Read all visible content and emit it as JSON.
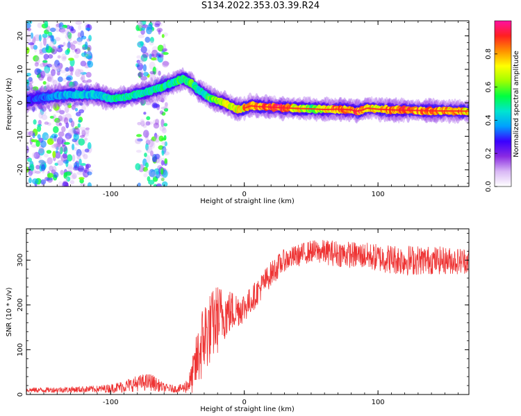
{
  "figure": {
    "title": "S134.2022.353.03.39.R24"
  },
  "chart_data": [
    {
      "type": "heatmap",
      "xlabel": "Height of straight line (km)",
      "ylabel": "Frequency (Hz)",
      "xlim": [
        -163,
        168
      ],
      "ylim": [
        -25,
        24.5
      ],
      "x_ticks": [
        -100,
        0,
        100
      ],
      "x_tick_labels": [
        "-100",
        "0",
        "100"
      ],
      "y_ticks": [
        -20,
        -10,
        0,
        10,
        20
      ],
      "y_tick_labels": [
        "-20",
        "-10",
        "0",
        "10",
        "20"
      ],
      "colorbar": {
        "label": "Normalized spectral amplitude",
        "range": [
          0,
          1
        ],
        "ticks": [
          0,
          0.2,
          0.4,
          0.6,
          0.8
        ],
        "tick_labels": [
          "0.0",
          "0.2",
          "0.4",
          "0.6",
          "0.8"
        ],
        "colormap": [
          "#ffffff",
          "#d9b8f5",
          "#8a2be2",
          "#3a00ff",
          "#00a0ff",
          "#00e5d0",
          "#00ff40",
          "#a0ff00",
          "#ffff00",
          "#ff9000",
          "#ff2020",
          "#ff10a0"
        ]
      },
      "ridge": {
        "x": [
          -163,
          -150,
          -130,
          -110,
          -100,
          -90,
          -80,
          -70,
          -60,
          -52,
          -46,
          -40,
          -35,
          -30,
          -25,
          -20,
          -15,
          -10,
          -5,
          0,
          5,
          10,
          20,
          30,
          40,
          50,
          60,
          70,
          80,
          84,
          88,
          92,
          100,
          110,
          120,
          140,
          168
        ],
        "freq": [
          0.8,
          1.6,
          2.5,
          2.4,
          1.2,
          1.6,
          2.6,
          3.6,
          4.9,
          6.2,
          7.3,
          6.0,
          4.0,
          2.6,
          1.3,
          0.5,
          0.0,
          -1.0,
          -2.0,
          -1.6,
          -0.9,
          -1.1,
          -1.3,
          -1.5,
          -1.7,
          -1.8,
          -2.0,
          -1.9,
          -2.1,
          -2.5,
          -2.2,
          -1.6,
          -1.9,
          -2.1,
          -2.2,
          -2.4,
          -2.5
        ],
        "peak_amplitude": [
          0.3,
          0.35,
          0.45,
          0.45,
          0.5,
          0.55,
          0.5,
          0.5,
          0.55,
          0.55,
          0.6,
          0.6,
          0.55,
          0.55,
          0.6,
          0.7,
          0.75,
          0.75,
          0.8,
          0.85,
          0.9,
          0.9,
          0.95,
          0.95,
          0.8,
          0.65,
          0.75,
          0.95,
          0.85,
          0.95,
          0.95,
          0.85,
          0.75,
          0.95,
          0.95,
          0.9,
          0.85
        ]
      },
      "noise_band_x": [
        [
          -163,
          -115
        ],
        [
          -80,
          -58
        ]
      ]
    },
    {
      "type": "line",
      "xlabel": "Height of straight line (km)",
      "ylabel": "SNR (10 * v/v)",
      "xlim": [
        -163,
        168
      ],
      "ylim": [
        0,
        370
      ],
      "x_ticks": [
        -100,
        0,
        100
      ],
      "x_tick_labels": [
        "-100",
        "0",
        "100"
      ],
      "y_ticks": [
        0,
        100,
        200,
        300
      ],
      "y_tick_labels": [
        "0",
        "100",
        "200",
        "300"
      ],
      "color": "#ee3333",
      "series": [
        {
          "x": [
            -163,
            -150,
            -130,
            -110,
            -100,
            -90,
            -80,
            -70,
            -60,
            -50,
            -45,
            -40,
            -35,
            -30,
            -25,
            -20,
            -15,
            -10,
            -5,
            0,
            5,
            10,
            15,
            20,
            25,
            30,
            40,
            50,
            60,
            70,
            80,
            90,
            100,
            120,
            140,
            160,
            168
          ],
          "mean": [
            10,
            10,
            11,
            12,
            14,
            18,
            25,
            28,
            15,
            12,
            15,
            30,
            80,
            130,
            150,
            170,
            180,
            185,
            190,
            195,
            210,
            230,
            250,
            270,
            285,
            300,
            310,
            320,
            318,
            315,
            312,
            310,
            305,
            300,
            300,
            298,
            300
          ],
          "spread": [
            6,
            6,
            7,
            8,
            10,
            14,
            18,
            20,
            10,
            8,
            12,
            30,
            70,
            90,
            80,
            80,
            60,
            50,
            40,
            35,
            30,
            30,
            30,
            28,
            28,
            25,
            25,
            25,
            28,
            30,
            30,
            30,
            32,
            35,
            32,
            30,
            30
          ]
        }
      ]
    }
  ]
}
